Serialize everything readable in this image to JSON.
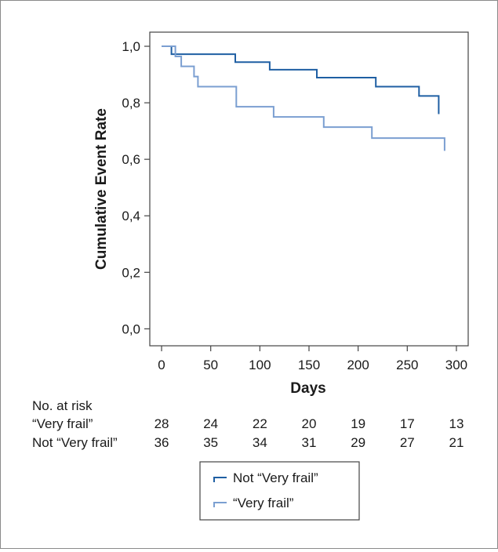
{
  "chart_data": {
    "type": "line",
    "xlabel": "Days",
    "ylabel": "Cumulative Event Rate",
    "xlim": [
      -12,
      312
    ],
    "ylim": [
      -0.06,
      1.05
    ],
    "x_ticks": [
      0,
      50,
      100,
      150,
      200,
      250,
      300
    ],
    "x_tick_labels": [
      "0",
      "50",
      "100",
      "150",
      "200",
      "250",
      "300"
    ],
    "y_ticks": [
      0.0,
      0.2,
      0.4,
      0.6,
      0.8,
      1.0
    ],
    "y_tick_labels": [
      "0,0",
      "0,2",
      "0,4",
      "0,6",
      "0,8",
      "1,0"
    ],
    "series": [
      {
        "name": "Not “Very frail”",
        "color": "#1f5fa3",
        "x": [
          0,
          10,
          75,
          110,
          158,
          218,
          262,
          282
        ],
        "y": [
          1.0,
          0.972,
          0.944,
          0.917,
          0.889,
          0.857,
          0.824,
          0.76
        ]
      },
      {
        "name": "“Very frail”",
        "color": "#7b9fd1",
        "x": [
          0,
          14,
          20,
          33,
          37,
          76,
          114,
          165,
          214,
          288
        ],
        "y": [
          1.0,
          0.964,
          0.929,
          0.893,
          0.857,
          0.786,
          0.75,
          0.714,
          0.675,
          0.63
        ]
      }
    ],
    "legend_position": "bottom-center",
    "grid": false
  },
  "risk_table": {
    "title": "No. at risk",
    "rows": [
      {
        "label": "“Very frail”",
        "values": [
          "28",
          "24",
          "22",
          "20",
          "19",
          "17",
          "13"
        ]
      },
      {
        "label": "Not “Very frail”",
        "values": [
          "36",
          "35",
          "34",
          "31",
          "29",
          "27",
          "21"
        ]
      }
    ]
  }
}
